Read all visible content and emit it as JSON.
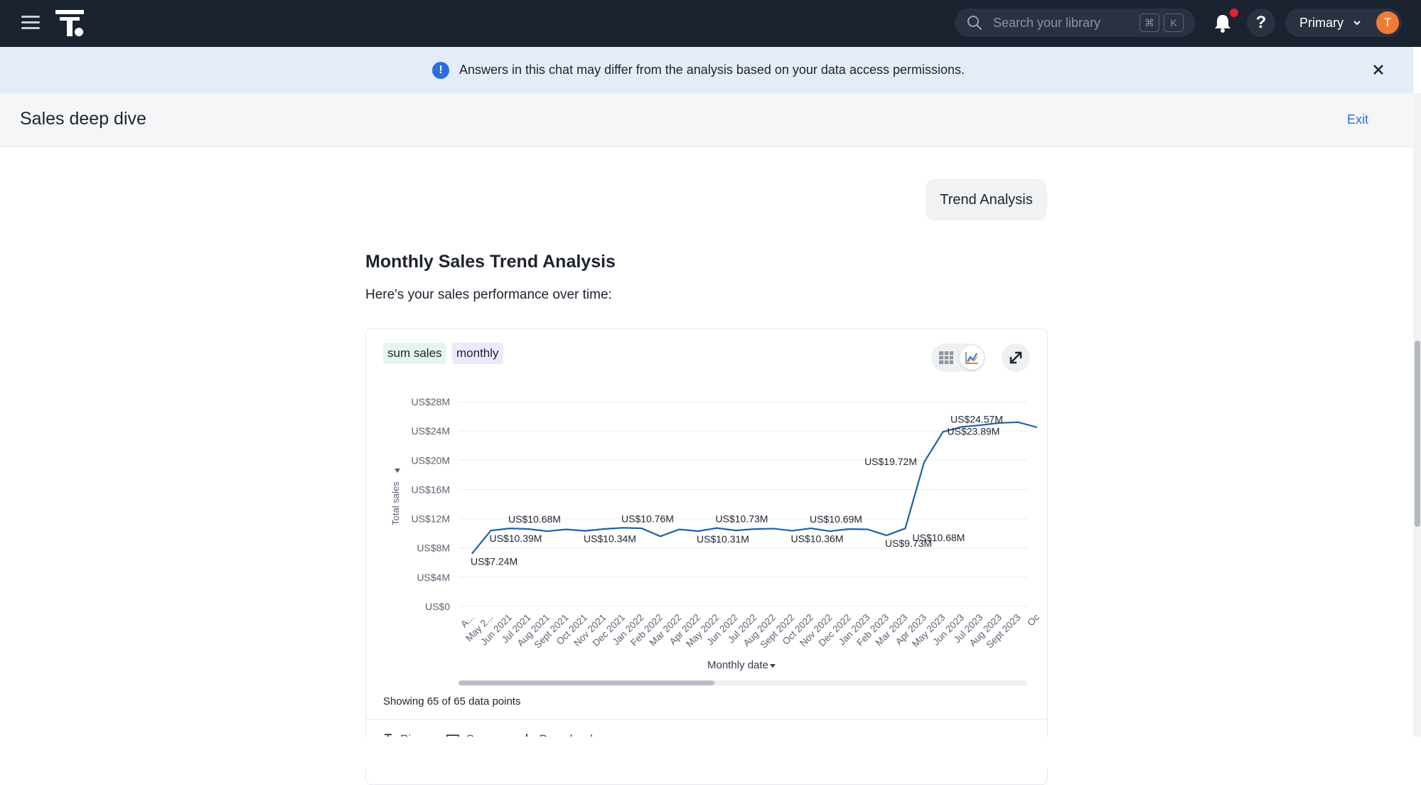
{
  "topbar": {
    "search_placeholder": "Search your library",
    "shortcut_keys": [
      "⌘",
      "K"
    ],
    "help_label": "?",
    "org_label": "Primary",
    "avatar_initial": "T",
    "notification_badge_color": "#e5232f",
    "avatar_color": "#f07b34"
  },
  "banner": {
    "message": "Answers in this chat may differ from the analysis based on your data access permissions."
  },
  "header": {
    "title": "Sales deep dive",
    "exit_label": "Exit"
  },
  "chat": {
    "user_message": "Trend Analysis",
    "response_title": "Monthly Sales Trend Analysis",
    "response_intro": "Here's your sales performance over time:"
  },
  "card": {
    "chips": [
      "sum sales",
      "monthly"
    ],
    "x_axis_label": "Monthly date",
    "y_axis_label": "Total sales",
    "showing_text": "Showing 65 of 65 data points",
    "actions": [
      "Pin",
      "Save",
      "Download"
    ]
  },
  "chart_data": {
    "type": "line",
    "xlabel": "Monthly date",
    "ylabel": "Total sales",
    "ylim": [
      0,
      28
    ],
    "y_unit": "US$ millions",
    "y_ticks": [
      "US$0",
      "US$4M",
      "US$8M",
      "US$12M",
      "US$16M",
      "US$20M",
      "US$24M",
      "US$28M"
    ],
    "x_tick_labels": [
      "A...",
      "May 2...",
      "Jun 2021",
      "Jul 2021",
      "Aug 2021",
      "Sept 2021",
      "Oct 2021",
      "Nov 2021",
      "Dec 2021",
      "Jan 2022",
      "Feb 2022",
      "Mar 2022",
      "Apr 2022",
      "May 2022",
      "Jun 2022",
      "Jul 2022",
      "Aug 2022",
      "Sept 2022",
      "Oct 2022",
      "Nov 2022",
      "Dec 2022",
      "Jan 2023",
      "Feb 2023",
      "Mar 2023",
      "Apr 2023",
      "May 2023",
      "Jun 2023",
      "Jul 2023",
      "Aug 2023",
      "Sept 2023",
      "Oc"
    ],
    "values": [
      7.24,
      10.39,
      10.68,
      10.6,
      10.3,
      10.55,
      10.34,
      10.6,
      10.76,
      10.7,
      9.6,
      10.55,
      10.31,
      10.73,
      10.4,
      10.6,
      10.65,
      10.36,
      10.69,
      10.3,
      10.6,
      10.55,
      9.73,
      10.68,
      19.72,
      23.89,
      24.57,
      24.8,
      25.1,
      25.2,
      24.5
    ],
    "data_labels": [
      {
        "index": 0,
        "text": "US$7.24M",
        "pos": "below"
      },
      {
        "index": 1,
        "text": "US$10.39M",
        "pos": "below"
      },
      {
        "index": 2,
        "text": "US$10.68M",
        "pos": "above"
      },
      {
        "index": 6,
        "text": "US$10.34M",
        "pos": "below"
      },
      {
        "index": 8,
        "text": "US$10.76M",
        "pos": "above"
      },
      {
        "index": 12,
        "text": "US$10.31M",
        "pos": "below"
      },
      {
        "index": 13,
        "text": "US$10.73M",
        "pos": "above"
      },
      {
        "index": 17,
        "text": "US$10.36M",
        "pos": "below"
      },
      {
        "index": 18,
        "text": "US$10.69M",
        "pos": "above"
      },
      {
        "index": 22,
        "text": "US$9.73M",
        "pos": "below"
      },
      {
        "index": 23,
        "text": "US$10.68M",
        "pos": "belowright"
      },
      {
        "index": 24,
        "text": "US$19.72M",
        "pos": "left"
      },
      {
        "index": 25,
        "text": "US$23.89M",
        "pos": "right"
      },
      {
        "index": 26,
        "text": "US$24.57M",
        "pos": "aboveleft"
      }
    ],
    "line_color": "#1f5fa8",
    "grid": true
  }
}
